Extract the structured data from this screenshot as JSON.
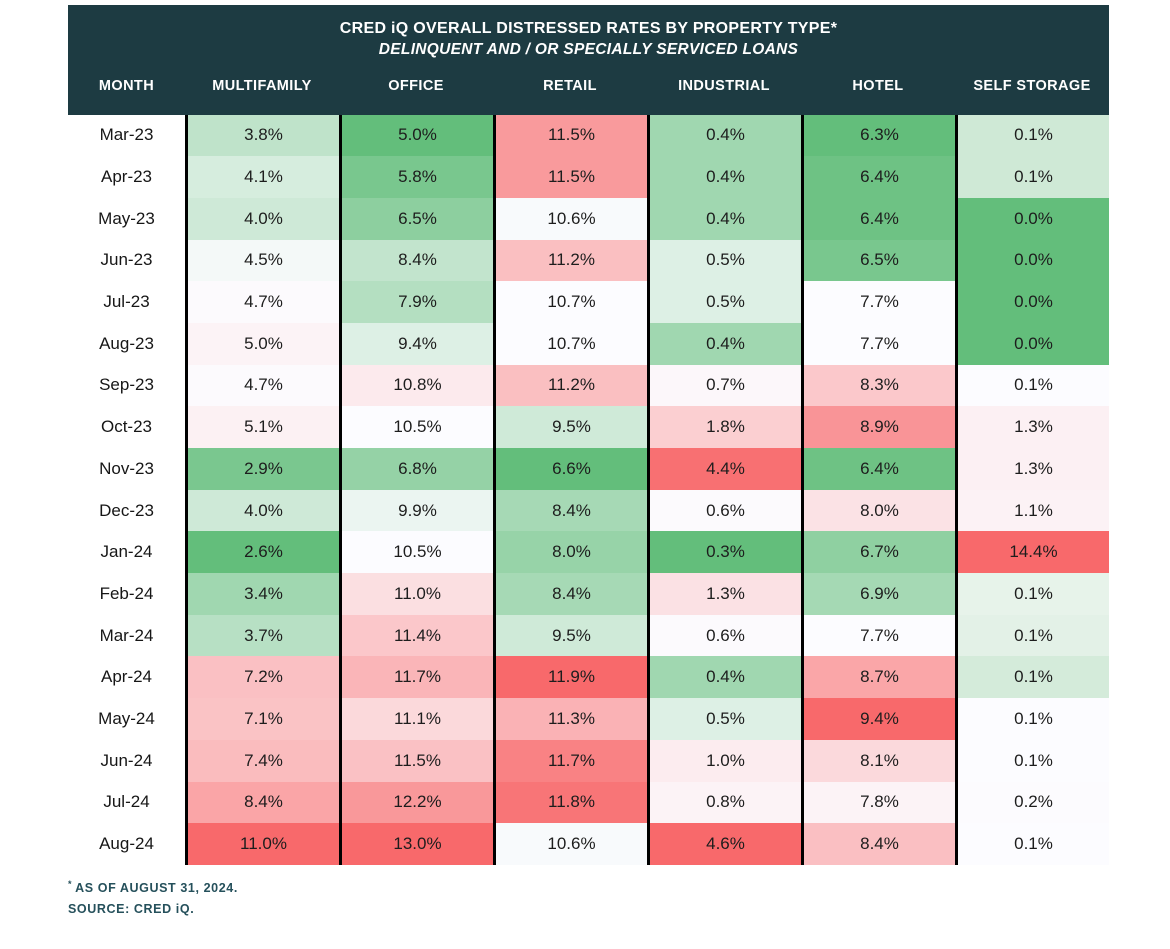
{
  "table": {
    "title": "CRED iQ OVERALL DISTRESSED RATES BY PROPERTY TYPE*",
    "subtitle": "DELINQUENT AND / OR SPECIALLY SERVICED LOANS",
    "header_bg": "#1d3b42",
    "header_text_color": "#ffffff"
  },
  "chart_data": {
    "type": "heatmap",
    "columns": [
      "MONTH",
      "MULTIFAMILY",
      "OFFICE",
      "RETAIL",
      "INDUSTRIAL",
      "HOTEL",
      "SELF STORAGE"
    ],
    "months": [
      "Mar-23",
      "Apr-23",
      "May-23",
      "Jun-23",
      "Jul-23",
      "Aug-23",
      "Sep-23",
      "Oct-23",
      "Nov-23",
      "Dec-23",
      "Jan-24",
      "Feb-24",
      "Mar-24",
      "Apr-24",
      "May-24",
      "Jun-24",
      "Jul-24",
      "Aug-24"
    ],
    "values": [
      [
        3.8,
        5.0,
        11.5,
        0.4,
        6.3,
        0.1
      ],
      [
        4.1,
        5.8,
        11.5,
        0.4,
        6.4,
        0.1
      ],
      [
        4.0,
        6.5,
        10.6,
        0.4,
        6.4,
        0.0
      ],
      [
        4.5,
        8.4,
        11.2,
        0.5,
        6.5,
        0.0
      ],
      [
        4.7,
        7.9,
        10.7,
        0.5,
        7.7,
        0.0
      ],
      [
        5.0,
        9.4,
        10.7,
        0.4,
        7.7,
        0.0
      ],
      [
        4.7,
        10.8,
        11.2,
        0.7,
        8.3,
        0.1
      ],
      [
        5.1,
        10.5,
        9.5,
        1.8,
        8.9,
        1.3
      ],
      [
        2.9,
        6.8,
        6.6,
        4.4,
        6.4,
        1.3
      ],
      [
        4.0,
        9.9,
        8.4,
        0.6,
        8.0,
        1.1
      ],
      [
        2.6,
        10.5,
        8.0,
        0.3,
        6.7,
        14.4
      ],
      [
        3.4,
        11.0,
        8.4,
        1.3,
        6.9,
        0.1
      ],
      [
        3.7,
        11.4,
        9.5,
        0.6,
        7.7,
        0.1
      ],
      [
        7.2,
        11.7,
        11.9,
        0.4,
        8.7,
        0.1
      ],
      [
        7.1,
        11.1,
        11.3,
        0.5,
        9.4,
        0.1
      ],
      [
        7.4,
        11.5,
        11.7,
        1.0,
        8.1,
        0.1
      ],
      [
        8.4,
        12.2,
        11.8,
        0.8,
        7.8,
        0.2
      ],
      [
        11.0,
        13.0,
        10.6,
        4.6,
        8.4,
        0.1
      ]
    ],
    "value_format": "percent_one_decimal",
    "colorscale": {
      "description": "per-column 3-color scale: column min -> green, column median -> white, column max -> red",
      "low": "#63BE7B",
      "mid": "#FCFCFF",
      "high": "#F8696B"
    },
    "color_overrides": [
      {
        "row": 0,
        "col": 5,
        "color": "#CFE9D6"
      },
      {
        "row": 1,
        "col": 5,
        "color": "#CFE9D6"
      },
      {
        "row": 11,
        "col": 5,
        "color": "#E7F3EA"
      },
      {
        "row": 12,
        "col": 5,
        "color": "#E3F1E7"
      },
      {
        "row": 13,
        "col": 5,
        "color": "#D4EBDA"
      }
    ],
    "grid": "vertical black separators between value columns only",
    "legend": "none"
  },
  "footer": {
    "footnote_marker": "*",
    "footnote": "AS OF AUGUST 31, 2024.",
    "source": "SOURCE: CRED iQ."
  }
}
